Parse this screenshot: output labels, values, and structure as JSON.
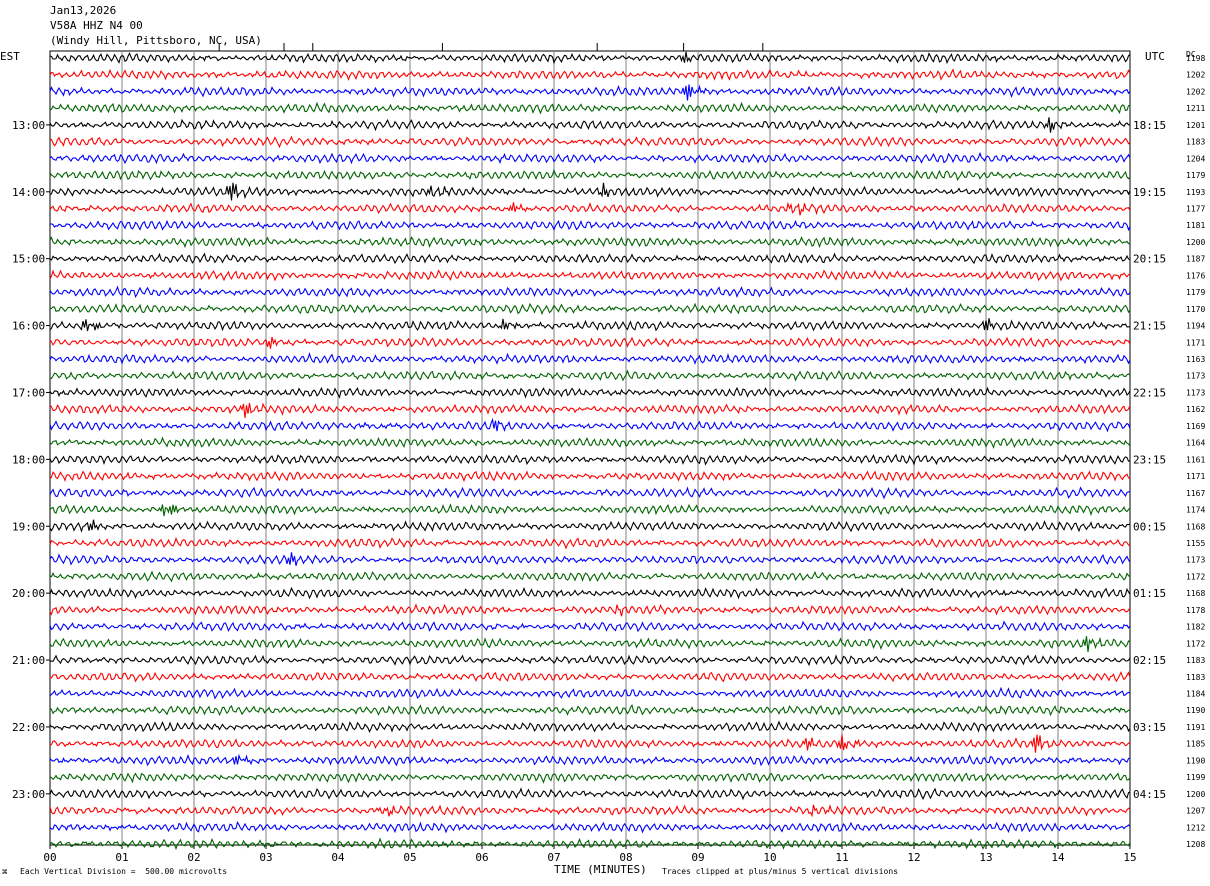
{
  "header": {
    "date": "Jan13,2026",
    "station": "V58A HHZ N4 00",
    "location": "(Windy Hill, Pittsboro, NC, USA)"
  },
  "left_label": "EST",
  "right_label": "UTC",
  "dc_label": "DC",
  "footer": {
    "mark": "⌘",
    "scale_note": "Each Vertical Division =  500.00 microvolts",
    "clip_note": "Traces clipped at plus/minus 5 vertical divisions"
  },
  "colors": {
    "traces": [
      "#000000",
      "#ff0000",
      "#0000ff",
      "#006400"
    ],
    "grid": "#808080",
    "frame": "#000000"
  },
  "chart_data": {
    "type": "line",
    "title": "",
    "xlabel": "TIME (MINUTES)",
    "ylabel": "",
    "xlim": [
      0,
      15
    ],
    "x_ticks": [
      "00",
      "01",
      "02",
      "03",
      "04",
      "05",
      "06",
      "07",
      "08",
      "09",
      "10",
      "11",
      "12",
      "13",
      "14",
      "15"
    ],
    "grid": true,
    "row_count": 48,
    "rows_per_hour": 4,
    "left_hour_labels": [
      "13:00",
      "14:00",
      "15:00",
      "16:00",
      "17:00",
      "18:00",
      "19:00",
      "20:00",
      "21:00",
      "22:00",
      "23:00"
    ],
    "left_hour_rows": [
      4,
      8,
      12,
      16,
      20,
      24,
      28,
      32,
      36,
      40,
      44
    ],
    "right_hour_labels": [
      "18:15",
      "19:15",
      "20:15",
      "21:15",
      "22:15",
      "23:15",
      "00:15",
      "01:15",
      "02:15",
      "03:15",
      "04:15"
    ],
    "right_hour_rows": [
      4,
      8,
      12,
      16,
      20,
      24,
      28,
      32,
      36,
      40,
      44
    ],
    "dc_offsets": [
      1198,
      1202,
      1202,
      1211,
      1201,
      1183,
      1204,
      1179,
      1193,
      1177,
      1181,
      1200,
      1187,
      1176,
      1179,
      1170,
      1194,
      1171,
      1163,
      1173,
      1173,
      1162,
      1169,
      1164,
      1161,
      1171,
      1167,
      1174,
      1168,
      1155,
      1173,
      1172,
      1168,
      1178,
      1182,
      1172,
      1183,
      1183,
      1184,
      1190,
      1191,
      1185,
      1190,
      1199,
      1200,
      1207,
      1212,
      1208
    ],
    "events": [
      {
        "row": 0,
        "minute": 8.8,
        "amp": 1.4
      },
      {
        "row": 2,
        "minute": 8.85,
        "amp": 2.2
      },
      {
        "row": 4,
        "minute": 13.9,
        "amp": 2.0
      },
      {
        "row": 8,
        "minute": 2.5,
        "amp": 2.5
      },
      {
        "row": 8,
        "minute": 5.3,
        "amp": 2.0
      },
      {
        "row": 8,
        "minute": 7.7,
        "amp": 1.8
      },
      {
        "row": 9,
        "minute": 6.45,
        "amp": 2.0
      },
      {
        "row": 9,
        "minute": 10.3,
        "amp": 2.2
      },
      {
        "row": 16,
        "minute": 0.5,
        "amp": 2.0
      },
      {
        "row": 16,
        "minute": 6.3,
        "amp": 1.5
      },
      {
        "row": 16,
        "minute": 13.0,
        "amp": 1.8
      },
      {
        "row": 17,
        "minute": 3.05,
        "amp": 1.4
      },
      {
        "row": 21,
        "minute": 2.7,
        "amp": 2.0
      },
      {
        "row": 22,
        "minute": 6.2,
        "amp": 1.8
      },
      {
        "row": 27,
        "minute": 1.6,
        "amp": 2.6
      },
      {
        "row": 28,
        "minute": 0.5,
        "amp": 2.0
      },
      {
        "row": 30,
        "minute": 3.3,
        "amp": 2.0
      },
      {
        "row": 33,
        "minute": 7.85,
        "amp": 1.4
      },
      {
        "row": 35,
        "minute": 14.4,
        "amp": 2.0
      },
      {
        "row": 41,
        "minute": 10.5,
        "amp": 2.0
      },
      {
        "row": 41,
        "minute": 11.0,
        "amp": 2.0
      },
      {
        "row": 41,
        "minute": 13.7,
        "amp": 3.0
      },
      {
        "row": 42,
        "minute": 2.6,
        "amp": 1.6
      },
      {
        "row": 45,
        "minute": 4.6,
        "amp": 1.8
      },
      {
        "row": 45,
        "minute": 10.6,
        "amp": 1.6
      }
    ]
  }
}
